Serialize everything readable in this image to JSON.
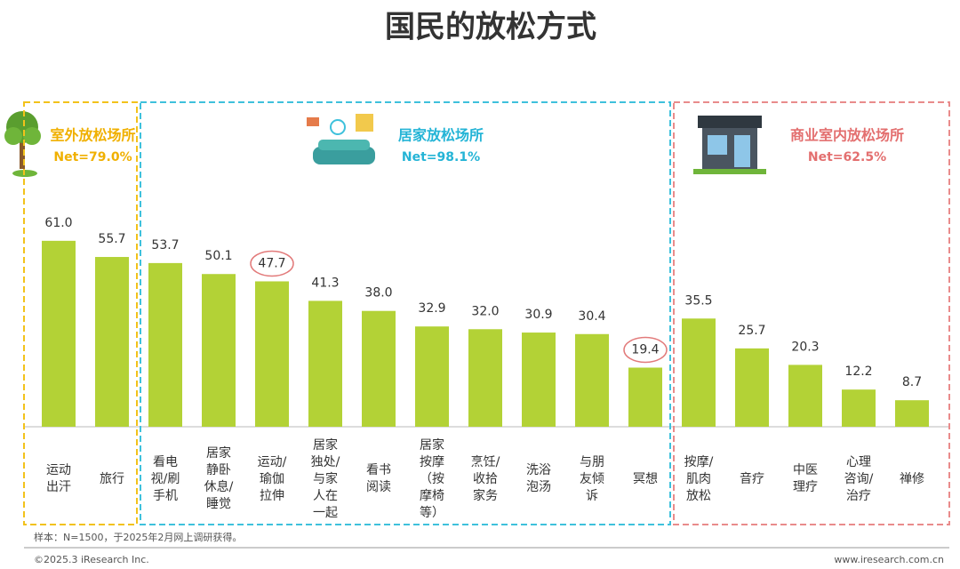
{
  "chart_data": {
    "type": "bar",
    "title": "国民的放松方式",
    "color": "#b3d236",
    "ylim": [
      0,
      70
    ],
    "groups": [
      {
        "name": "室外放松场所",
        "net": 79.0,
        "net_label": "Net=79.0%",
        "color": "#f2c21b",
        "text_color": "#f0b000",
        "categories": [
          "运动\n出汗",
          "旅行"
        ],
        "values": [
          61.0,
          55.7
        ],
        "value_labels": [
          "61.0",
          "55.7"
        ],
        "highlight": []
      },
      {
        "name": "居家放松场所",
        "net": 98.1,
        "net_label": "Net=98.1%",
        "color": "#3ec1dc",
        "text_color": "#24b4d6",
        "categories": [
          "看电\n视/刷\n手机",
          "居家\n静卧\n休息/\n睡觉",
          "运动/\n瑜伽\n拉伸",
          "居家\n独处/\n与家\n人在\n一起",
          "看书\n阅读",
          "居家\n按摩\n（按\n摩椅\n等）",
          "烹饪/\n收拾\n家务",
          "洗浴\n泡汤",
          "与朋\n友倾\n诉",
          "冥想"
        ],
        "values": [
          53.7,
          50.1,
          47.7,
          41.3,
          38.0,
          32.9,
          32.0,
          30.9,
          30.4,
          19.4
        ],
        "value_labels": [
          "53.7",
          "50.1",
          "47.7",
          "41.3",
          "38.0",
          "32.9",
          "32.0",
          "30.9",
          "30.4",
          "19.4"
        ],
        "highlight": [
          2,
          9
        ]
      },
      {
        "name": "商业室内放松场所",
        "net": 62.5,
        "net_label": "Net=62.5%",
        "color": "#e98b8b",
        "text_color": "#e36f6f",
        "categories": [
          "按摩/\n肌肉\n放松",
          "音疗",
          "中医\n理疗",
          "心理\n咨询/\n治疗",
          "禅修"
        ],
        "values": [
          35.5,
          25.7,
          20.3,
          12.2,
          8.7
        ],
        "value_labels": [
          "35.5",
          "25.7",
          "20.3",
          "12.2",
          "8.7"
        ],
        "highlight": []
      }
    ],
    "note": "样本：N=1500，于2025年2月网上调研获得。",
    "copyright": "©2025.3 iResearch Inc.",
    "website": "www.iresearch.com.cn"
  }
}
